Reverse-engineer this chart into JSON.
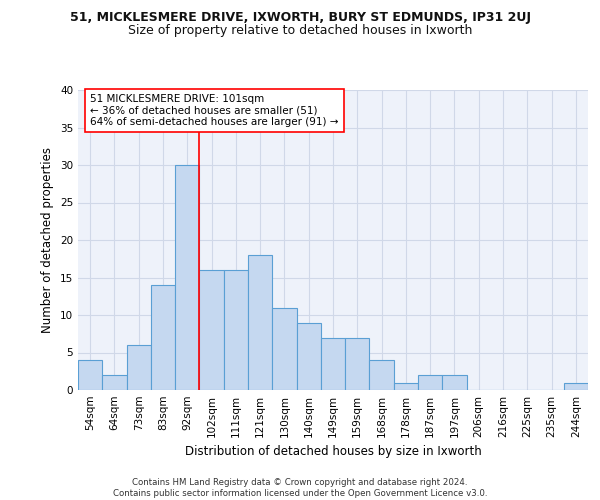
{
  "title_line1": "51, MICKLESMERE DRIVE, IXWORTH, BURY ST EDMUNDS, IP31 2UJ",
  "title_line2": "Size of property relative to detached houses in Ixworth",
  "xlabel": "Distribution of detached houses by size in Ixworth",
  "ylabel": "Number of detached properties",
  "categories": [
    "54sqm",
    "64sqm",
    "73sqm",
    "83sqm",
    "92sqm",
    "102sqm",
    "111sqm",
    "121sqm",
    "130sqm",
    "140sqm",
    "149sqm",
    "159sqm",
    "168sqm",
    "178sqm",
    "187sqm",
    "197sqm",
    "206sqm",
    "216sqm",
    "225sqm",
    "235sqm",
    "244sqm"
  ],
  "values": [
    4,
    2,
    6,
    14,
    30,
    16,
    16,
    18,
    11,
    9,
    7,
    7,
    4,
    1,
    2,
    2,
    0,
    0,
    0,
    0,
    1
  ],
  "bar_color": "#c5d8f0",
  "bar_edge_color": "#5a9fd4",
  "grid_color": "#d0d8e8",
  "background_color": "#eef2fa",
  "annotation_line1": "51 MICKLESMERE DRIVE: 101sqm",
  "annotation_line2": "← 36% of detached houses are smaller (51)",
  "annotation_line3": "64% of semi-detached houses are larger (91) →",
  "property_line_x": 4.5,
  "ylim": [
    0,
    40
  ],
  "yticks": [
    0,
    5,
    10,
    15,
    20,
    25,
    30,
    35,
    40
  ],
  "footer_text": "Contains HM Land Registry data © Crown copyright and database right 2024.\nContains public sector information licensed under the Open Government Licence v3.0.",
  "title_fontsize": 9,
  "subtitle_fontsize": 9,
  "annotation_fontsize": 7.5,
  "axis_label_fontsize": 8.5,
  "tick_fontsize": 7.5
}
